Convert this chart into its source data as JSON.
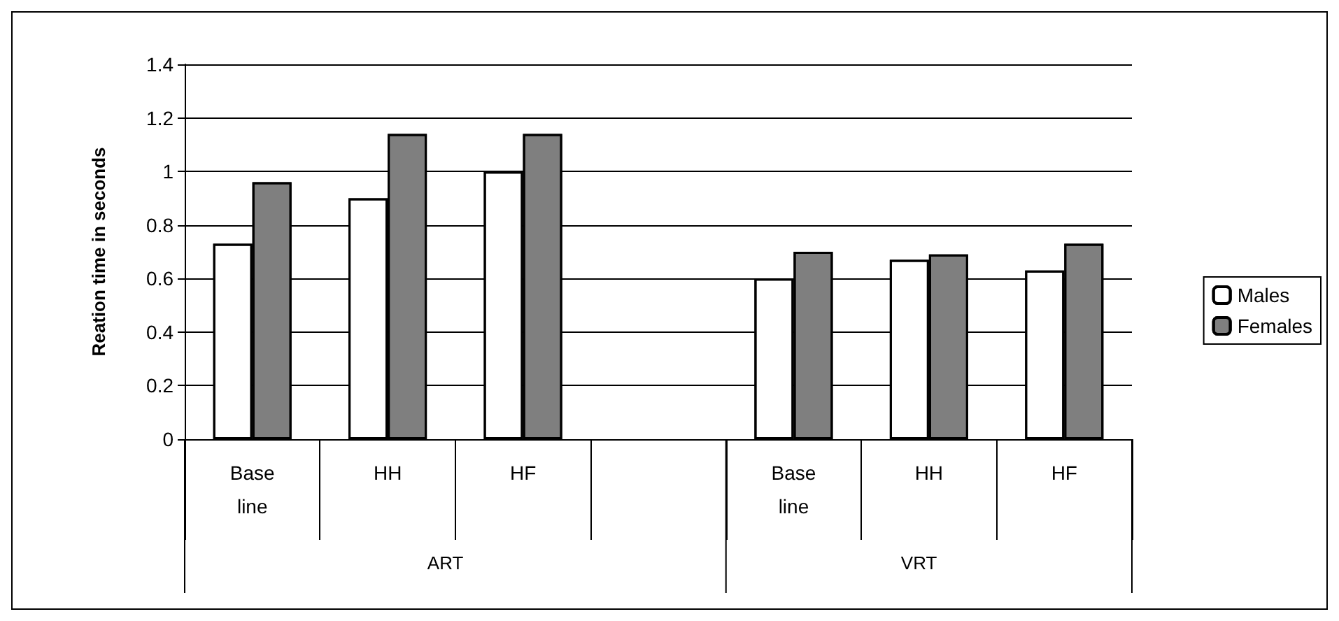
{
  "chart_data": {
    "type": "bar",
    "ylabel": "Reation time in seconds",
    "categories": [
      "Base\nline",
      "HH",
      "HF",
      null,
      "Base\nline",
      "HH",
      "HF"
    ],
    "series": [
      {
        "name": "Males",
        "color": "#ffffff",
        "values": [
          0.73,
          0.9,
          1.0,
          null,
          0.6,
          0.67,
          0.63
        ]
      },
      {
        "name": "Females",
        "color": "#7f7f7f",
        "values": [
          0.96,
          1.14,
          1.14,
          null,
          0.7,
          0.69,
          0.73
        ]
      }
    ],
    "ylim": [
      0,
      1.4
    ],
    "yticks": [
      0,
      0.2,
      0.4,
      0.6,
      0.8,
      1,
      1.2,
      1.4
    ],
    "grid": "y",
    "legend": "right",
    "annotations": [
      "ART",
      "VRT"
    ]
  }
}
